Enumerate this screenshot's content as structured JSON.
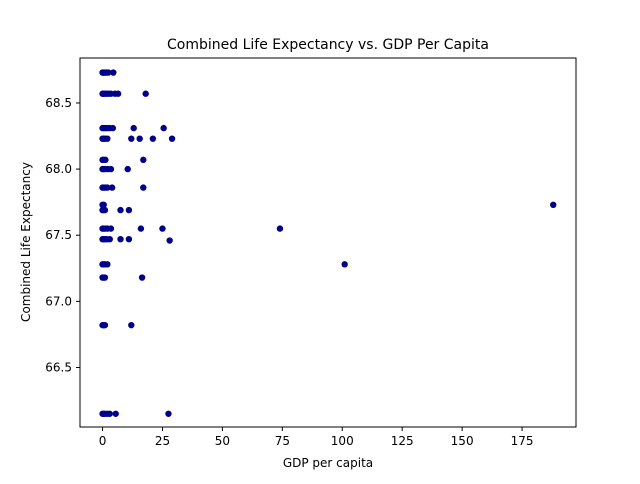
{
  "chart_data": {
    "type": "scatter",
    "title": "Combined Life Expectancy vs. GDP Per Capita",
    "xlabel": "GDP per capita",
    "ylabel": "Combined Life Expectancy",
    "xlim": [
      -9.4,
      197.5
    ],
    "ylim": [
      66.05,
      68.84
    ],
    "xticks": [
      0,
      25,
      50,
      75,
      100,
      125,
      150,
      175
    ],
    "xtick_labels": [
      "0",
      "25",
      "50",
      "75",
      "100",
      "125",
      "150",
      "175"
    ],
    "yticks": [
      66.5,
      67.0,
      67.5,
      68.0,
      68.5
    ],
    "ytick_labels": [
      "66.5",
      "67.0",
      "67.5",
      "68.0",
      "68.5"
    ],
    "grid": false,
    "legend": "none",
    "marker_color": "#00008b",
    "points": [
      {
        "x": 0.0,
        "y": 68.73
      },
      {
        "x": 0.3,
        "y": 68.73
      },
      {
        "x": 0.6,
        "y": 68.73
      },
      {
        "x": 1.0,
        "y": 68.73
      },
      {
        "x": 1.6,
        "y": 68.73
      },
      {
        "x": 2.4,
        "y": 68.73
      },
      {
        "x": 4.5,
        "y": 68.73
      },
      {
        "x": 0.0,
        "y": 68.57
      },
      {
        "x": 0.4,
        "y": 68.57
      },
      {
        "x": 0.9,
        "y": 68.57
      },
      {
        "x": 1.6,
        "y": 68.57
      },
      {
        "x": 2.5,
        "y": 68.57
      },
      {
        "x": 3.5,
        "y": 68.57
      },
      {
        "x": 5.2,
        "y": 68.57
      },
      {
        "x": 6.5,
        "y": 68.57
      },
      {
        "x": 18.0,
        "y": 68.57
      },
      {
        "x": 0.0,
        "y": 68.31
      },
      {
        "x": 0.5,
        "y": 68.31
      },
      {
        "x": 1.2,
        "y": 68.31
      },
      {
        "x": 2.0,
        "y": 68.31
      },
      {
        "x": 3.0,
        "y": 68.31
      },
      {
        "x": 4.3,
        "y": 68.31
      },
      {
        "x": 13.0,
        "y": 68.31
      },
      {
        "x": 25.5,
        "y": 68.31
      },
      {
        "x": 0.0,
        "y": 68.23
      },
      {
        "x": 0.5,
        "y": 68.23
      },
      {
        "x": 1.0,
        "y": 68.23
      },
      {
        "x": 2.0,
        "y": 68.23
      },
      {
        "x": 12.0,
        "y": 68.23
      },
      {
        "x": 15.5,
        "y": 68.23
      },
      {
        "x": 21.0,
        "y": 68.23
      },
      {
        "x": 29.0,
        "y": 68.23
      },
      {
        "x": 0.0,
        "y": 68.07
      },
      {
        "x": 0.5,
        "y": 68.07
      },
      {
        "x": 1.2,
        "y": 68.07
      },
      {
        "x": 17.0,
        "y": 68.07
      },
      {
        "x": 0.0,
        "y": 68.0
      },
      {
        "x": 0.5,
        "y": 68.0
      },
      {
        "x": 1.0,
        "y": 68.0
      },
      {
        "x": 2.2,
        "y": 68.0
      },
      {
        "x": 3.5,
        "y": 68.0
      },
      {
        "x": 10.5,
        "y": 68.0
      },
      {
        "x": 0.0,
        "y": 67.86
      },
      {
        "x": 0.5,
        "y": 67.86
      },
      {
        "x": 1.2,
        "y": 67.86
      },
      {
        "x": 2.0,
        "y": 67.86
      },
      {
        "x": 4.0,
        "y": 67.86
      },
      {
        "x": 17.0,
        "y": 67.86
      },
      {
        "x": 0.0,
        "y": 67.73
      },
      {
        "x": 0.5,
        "y": 67.73
      },
      {
        "x": 188.0,
        "y": 67.73
      },
      {
        "x": 0.0,
        "y": 67.69
      },
      {
        "x": 0.5,
        "y": 67.69
      },
      {
        "x": 1.0,
        "y": 67.69
      },
      {
        "x": 7.5,
        "y": 67.69
      },
      {
        "x": 11.0,
        "y": 67.69
      },
      {
        "x": 0.0,
        "y": 67.55
      },
      {
        "x": 0.5,
        "y": 67.55
      },
      {
        "x": 1.0,
        "y": 67.55
      },
      {
        "x": 2.0,
        "y": 67.55
      },
      {
        "x": 3.5,
        "y": 67.55
      },
      {
        "x": 16.0,
        "y": 67.55
      },
      {
        "x": 25.0,
        "y": 67.55
      },
      {
        "x": 74.0,
        "y": 67.55
      },
      {
        "x": 0.0,
        "y": 67.47
      },
      {
        "x": 0.5,
        "y": 67.47
      },
      {
        "x": 1.0,
        "y": 67.47
      },
      {
        "x": 1.8,
        "y": 67.47
      },
      {
        "x": 3.0,
        "y": 67.47
      },
      {
        "x": 7.5,
        "y": 67.47
      },
      {
        "x": 11.0,
        "y": 67.47
      },
      {
        "x": 28.0,
        "y": 67.46
      },
      {
        "x": 0.0,
        "y": 67.28
      },
      {
        "x": 0.5,
        "y": 67.28
      },
      {
        "x": 1.0,
        "y": 67.28
      },
      {
        "x": 2.0,
        "y": 67.28
      },
      {
        "x": 101.0,
        "y": 67.28
      },
      {
        "x": 0.0,
        "y": 67.18
      },
      {
        "x": 0.5,
        "y": 67.18
      },
      {
        "x": 1.0,
        "y": 67.18
      },
      {
        "x": 16.5,
        "y": 67.18
      },
      {
        "x": 0.0,
        "y": 66.82
      },
      {
        "x": 0.5,
        "y": 66.82
      },
      {
        "x": 1.0,
        "y": 66.82
      },
      {
        "x": 12.0,
        "y": 66.82
      },
      {
        "x": 0.0,
        "y": 66.15
      },
      {
        "x": 0.5,
        "y": 66.15
      },
      {
        "x": 1.0,
        "y": 66.15
      },
      {
        "x": 2.0,
        "y": 66.15
      },
      {
        "x": 3.0,
        "y": 66.15
      },
      {
        "x": 5.5,
        "y": 66.15
      },
      {
        "x": 27.5,
        "y": 66.15
      }
    ]
  }
}
